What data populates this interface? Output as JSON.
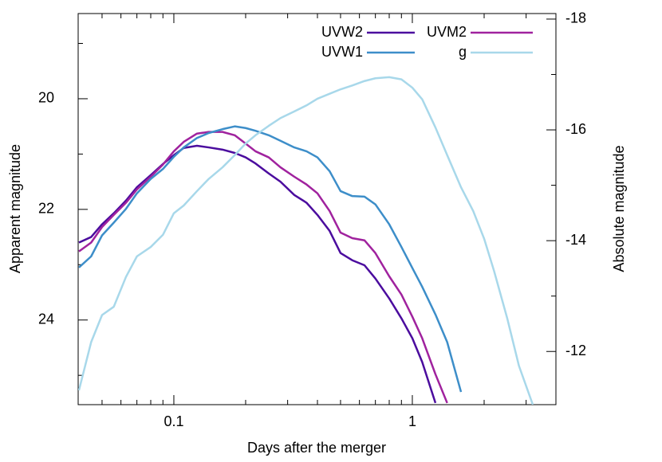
{
  "chart_data": {
    "type": "line",
    "xlabel": "Days after the merger",
    "ylabel": "Apparent magnitude",
    "y2label": "Absolute magnitude",
    "xscale": "log",
    "xlim": [
      0.0397,
      4.0
    ],
    "xticks": [
      0.1,
      1
    ],
    "xminorticks": [
      0.05,
      0.06,
      0.07,
      0.08,
      0.09,
      0.2,
      0.3,
      0.4,
      0.5,
      0.6,
      0.7,
      0.8,
      0.9,
      2,
      3,
      4
    ],
    "ylim": [
      25.53,
      18.46
    ],
    "yticks": [
      20,
      22,
      24
    ],
    "yminorticks": [
      19,
      21,
      23,
      25
    ],
    "y2lim": [
      -11.04,
      -18.1
    ],
    "y2ticks": [
      -18,
      -16,
      -14,
      -12
    ],
    "y2minorticks": [
      -17,
      -15,
      -13
    ],
    "legend": "top-right",
    "x": [
      0.04,
      0.045,
      0.05,
      0.056,
      0.063,
      0.07,
      0.08,
      0.09,
      0.1,
      0.11,
      0.125,
      0.14,
      0.16,
      0.18,
      0.2,
      0.22,
      0.25,
      0.28,
      0.32,
      0.36,
      0.4,
      0.45,
      0.5,
      0.56,
      0.63,
      0.7,
      0.8,
      0.9,
      1.0,
      1.1,
      1.25,
      1.4,
      1.6,
      1.8,
      2.0,
      2.2,
      2.5,
      2.8,
      3.2
    ],
    "series": [
      {
        "name": "UVW2",
        "color": "#4b0c9e",
        "values": [
          22.6,
          22.5,
          22.27,
          22.07,
          21.84,
          21.6,
          21.38,
          21.18,
          21.02,
          20.89,
          20.85,
          20.88,
          20.92,
          20.98,
          21.06,
          21.17,
          21.35,
          21.5,
          21.74,
          21.88,
          22.1,
          22.39,
          22.79,
          22.92,
          23.01,
          23.25,
          23.61,
          23.97,
          24.33,
          24.76,
          25.5,
          null,
          null,
          null,
          null,
          null,
          null,
          null,
          null
        ]
      },
      {
        "name": "UVM2",
        "color": "#a0229e",
        "values": [
          22.76,
          22.6,
          22.32,
          22.1,
          21.88,
          21.64,
          21.41,
          21.19,
          20.95,
          20.78,
          20.63,
          20.6,
          20.6,
          20.66,
          20.81,
          20.95,
          21.06,
          21.24,
          21.41,
          21.55,
          21.71,
          22.03,
          22.42,
          22.52,
          22.56,
          22.79,
          23.21,
          23.54,
          23.94,
          24.33,
          24.98,
          25.5,
          null,
          null,
          null,
          null,
          null,
          null,
          null
        ]
      },
      {
        "name": "UVW1",
        "color": "#3d8ec9",
        "values": [
          23.05,
          22.85,
          22.47,
          22.24,
          21.99,
          21.71,
          21.45,
          21.27,
          21.05,
          20.88,
          20.71,
          20.62,
          20.55,
          20.5,
          20.53,
          20.58,
          20.66,
          20.76,
          20.88,
          20.95,
          21.06,
          21.31,
          21.67,
          21.76,
          21.77,
          21.91,
          22.27,
          22.68,
          23.06,
          23.4,
          23.9,
          24.4,
          25.3,
          null,
          null,
          null,
          null,
          null,
          null
        ]
      },
      {
        "name": "g",
        "color": "#a8d8ea",
        "values": [
          25.27,
          24.4,
          23.91,
          23.76,
          23.22,
          22.85,
          22.68,
          22.46,
          22.07,
          21.93,
          21.67,
          21.45,
          21.24,
          21.02,
          20.81,
          20.66,
          20.49,
          20.35,
          20.23,
          20.12,
          20.0,
          19.91,
          19.83,
          19.76,
          19.68,
          19.63,
          19.61,
          19.65,
          19.8,
          20.01,
          20.52,
          21.02,
          21.6,
          22.03,
          22.53,
          23.11,
          23.97,
          24.83,
          25.53
        ]
      }
    ]
  }
}
